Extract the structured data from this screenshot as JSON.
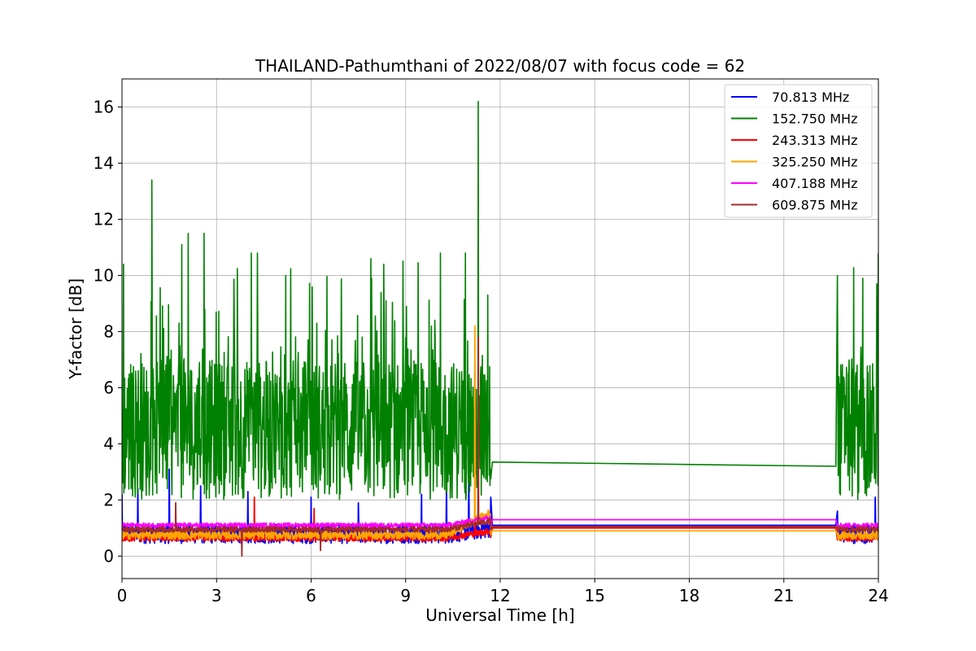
{
  "chart_data": {
    "type": "line",
    "title": "THAILAND-Pathumthani of 2022/08/07 with focus code = 62",
    "xlabel": "Universal Time [h]",
    "ylabel": "Y-factor [dB]",
    "xlim": [
      0,
      24
    ],
    "ylim": [
      -0.8,
      17
    ],
    "xticks": [
      0,
      3,
      6,
      9,
      12,
      15,
      18,
      21,
      24
    ],
    "yticks": [
      0,
      2,
      4,
      6,
      8,
      10,
      12,
      14,
      16
    ],
    "grid": true,
    "legend_position": "top-right",
    "gap": [
      11.7,
      22.7
    ],
    "series": [
      {
        "name": " 70.813 MHz",
        "color": "#0000ff",
        "base": 0.8,
        "noise": 0.35,
        "late_rise": 0.2,
        "end_value": 1.1,
        "spikes": [
          [
            0.0,
            2.2
          ],
          [
            0.5,
            2.4
          ],
          [
            1.5,
            3.1
          ],
          [
            2.5,
            2.5
          ],
          [
            4.0,
            2.3
          ],
          [
            6.0,
            2.1
          ],
          [
            7.5,
            1.9
          ],
          [
            9.5,
            2.2
          ],
          [
            10.3,
            2.8
          ],
          [
            11.0,
            2.9
          ],
          [
            11.7,
            2.1
          ],
          [
            22.7,
            1.6
          ],
          [
            23.9,
            2.1
          ]
        ]
      },
      {
        "name": "152.750 MHz",
        "color": "#008000",
        "base": 4.0,
        "noise": 2.5,
        "late_rise": 0,
        "end_value": 3.2,
        "spikes": [
          [
            0.05,
            10.4
          ],
          [
            0.95,
            13.4
          ],
          [
            1.9,
            11.1
          ],
          [
            2.1,
            11.5
          ],
          [
            2.6,
            11.5
          ],
          [
            4.1,
            10.8
          ],
          [
            4.3,
            10.8
          ],
          [
            5.2,
            10.0
          ],
          [
            7.9,
            10.6
          ],
          [
            8.3,
            10.4
          ],
          [
            10.1,
            10.8
          ],
          [
            10.9,
            10.8
          ],
          [
            11.3,
            16.2
          ],
          [
            11.6,
            9.3
          ],
          [
            22.7,
            10.0
          ],
          [
            23.5,
            9.9
          ],
          [
            23.95,
            9.7
          ]
        ]
      },
      {
        "name": "243.313 MHz",
        "color": "#ff0000",
        "base": 0.65,
        "noise": 0.12,
        "late_rise": 0.25,
        "end_value": 1.0,
        "spikes": [
          [
            4.2,
            2.1
          ],
          [
            6.1,
            1.7
          ],
          [
            11.2,
            1.3
          ]
        ]
      },
      {
        "name": "325.250 MHz",
        "color": "#ffa500",
        "base": 0.75,
        "noise": 0.15,
        "late_rise": 0.8,
        "end_value": 0.9,
        "spikes": [
          [
            11.2,
            8.2
          ]
        ]
      },
      {
        "name": "407.188 MHz",
        "color": "#ff00ff",
        "base": 1.1,
        "noise": 0.08,
        "late_rise": 0.3,
        "end_value": 1.3,
        "spikes": []
      },
      {
        "name": "609.875 MHz",
        "color": "#a52a2a",
        "base": 0.95,
        "noise": 0.1,
        "late_rise": 0.3,
        "end_value": 1.05,
        "spikes": [
          [
            1.7,
            1.9
          ],
          [
            3.8,
            0.0
          ],
          [
            6.3,
            0.2
          ],
          [
            11.3,
            7.8
          ]
        ]
      }
    ]
  }
}
